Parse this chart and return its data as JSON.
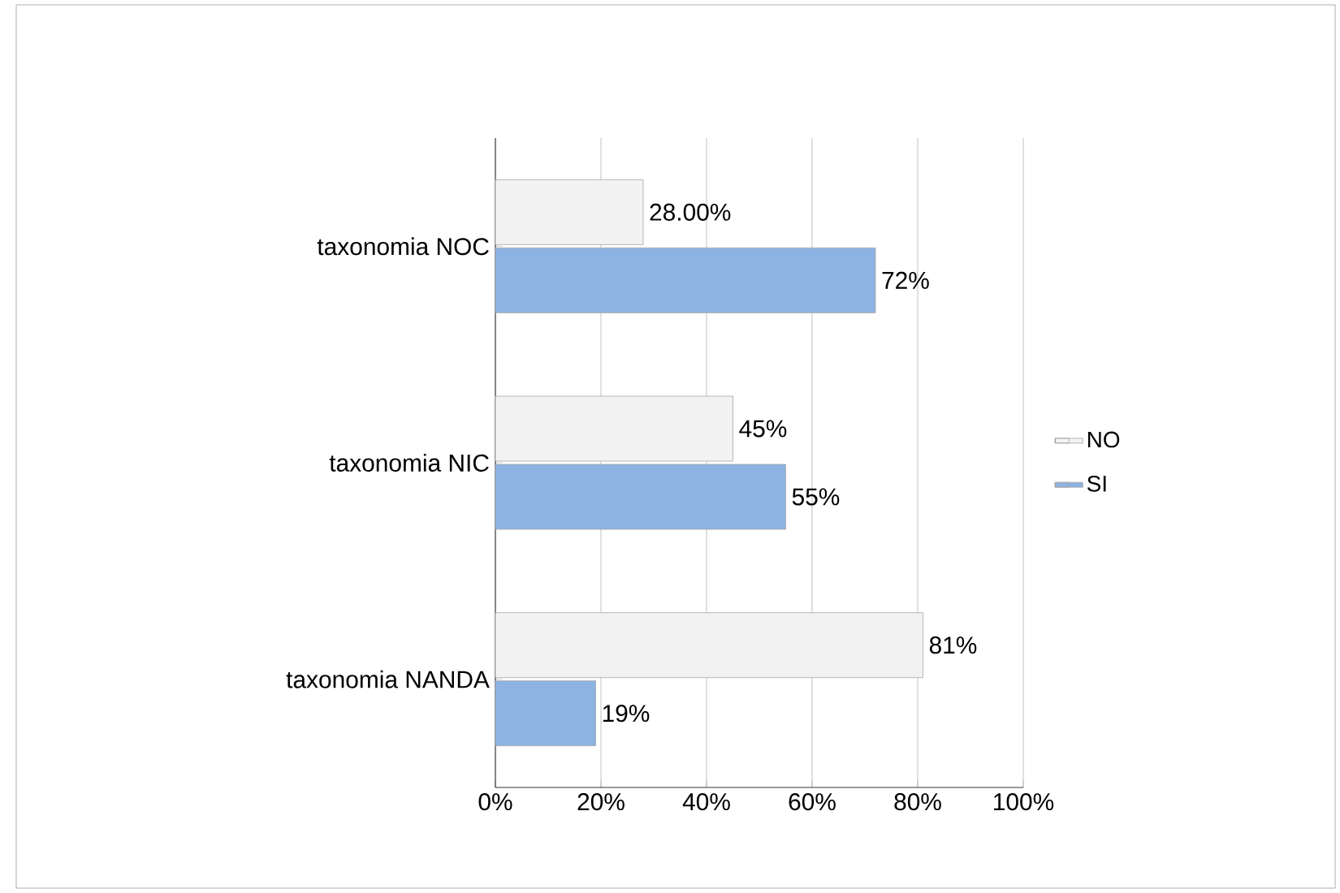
{
  "chart_data": {
    "type": "bar",
    "orientation": "horizontal",
    "categories": [
      "taxonomia NOC",
      "taxonomia NIC",
      "taxonomia NANDA"
    ],
    "series": [
      {
        "name": "NO",
        "color": "#f2f2f2",
        "values": [
          28,
          45,
          81
        ],
        "value_labels": [
          "28.00%",
          "45%",
          "81%"
        ]
      },
      {
        "name": "SI",
        "color": "#8db3e2",
        "values": [
          72,
          55,
          19
        ],
        "value_labels": [
          "72%",
          "55%",
          "19%"
        ]
      }
    ],
    "xlim": [
      0,
      100
    ],
    "xticks": [
      {
        "value": 0,
        "label": "0%"
      },
      {
        "value": 20,
        "label": "20%"
      },
      {
        "value": 40,
        "label": "40%"
      },
      {
        "value": 60,
        "label": "60%"
      },
      {
        "value": 80,
        "label": "80%"
      },
      {
        "value": 100,
        "label": "100%"
      }
    ],
    "grid": "x",
    "legend": "right"
  }
}
